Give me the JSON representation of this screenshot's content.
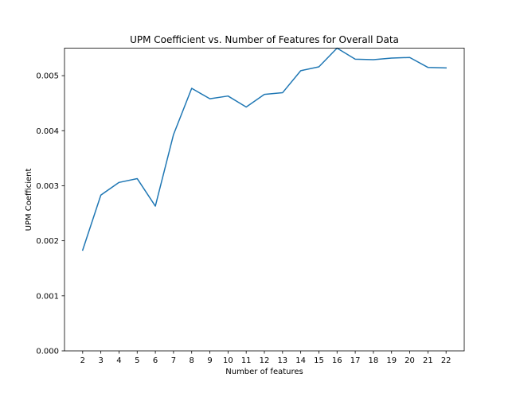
{
  "chart_data": {
    "type": "line",
    "title": "UPM Coefficient vs. Number of Features for Overall Data",
    "xlabel": "Number of features",
    "ylabel": "UPM Coefficient",
    "x": [
      2,
      3,
      4,
      5,
      6,
      7,
      8,
      9,
      10,
      11,
      12,
      13,
      14,
      15,
      16,
      17,
      18,
      19,
      20,
      21,
      22
    ],
    "series": [
      {
        "color": "#1f77b4",
        "values": [
          0.00183,
          0.00283,
          0.00306,
          0.00313,
          0.00263,
          0.00393,
          0.00477,
          0.00458,
          0.00463,
          0.00443,
          0.00466,
          0.00469,
          0.00509,
          0.00516,
          0.0055,
          0.0053,
          0.00529,
          0.00532,
          0.00533,
          0.00515,
          0.00514
        ]
      }
    ],
    "xticks": [
      "2",
      "3",
      "4",
      "5",
      "6",
      "7",
      "8",
      "9",
      "10",
      "11",
      "12",
      "13",
      "14",
      "15",
      "16",
      "17",
      "18",
      "19",
      "20",
      "21",
      "22"
    ],
    "xtick_values": [
      2,
      3,
      4,
      5,
      6,
      7,
      8,
      9,
      10,
      11,
      12,
      13,
      14,
      15,
      16,
      17,
      18,
      19,
      20,
      21,
      22
    ],
    "yticks": [
      "0.000",
      "0.001",
      "0.002",
      "0.003",
      "0.004",
      "0.005"
    ],
    "ytick_values": [
      0.0,
      0.001,
      0.002,
      0.003,
      0.004,
      0.005
    ],
    "xlim": [
      1.0,
      23.0
    ],
    "ylim": [
      0.0,
      0.0055
    ],
    "grid": false,
    "legend": "none"
  }
}
